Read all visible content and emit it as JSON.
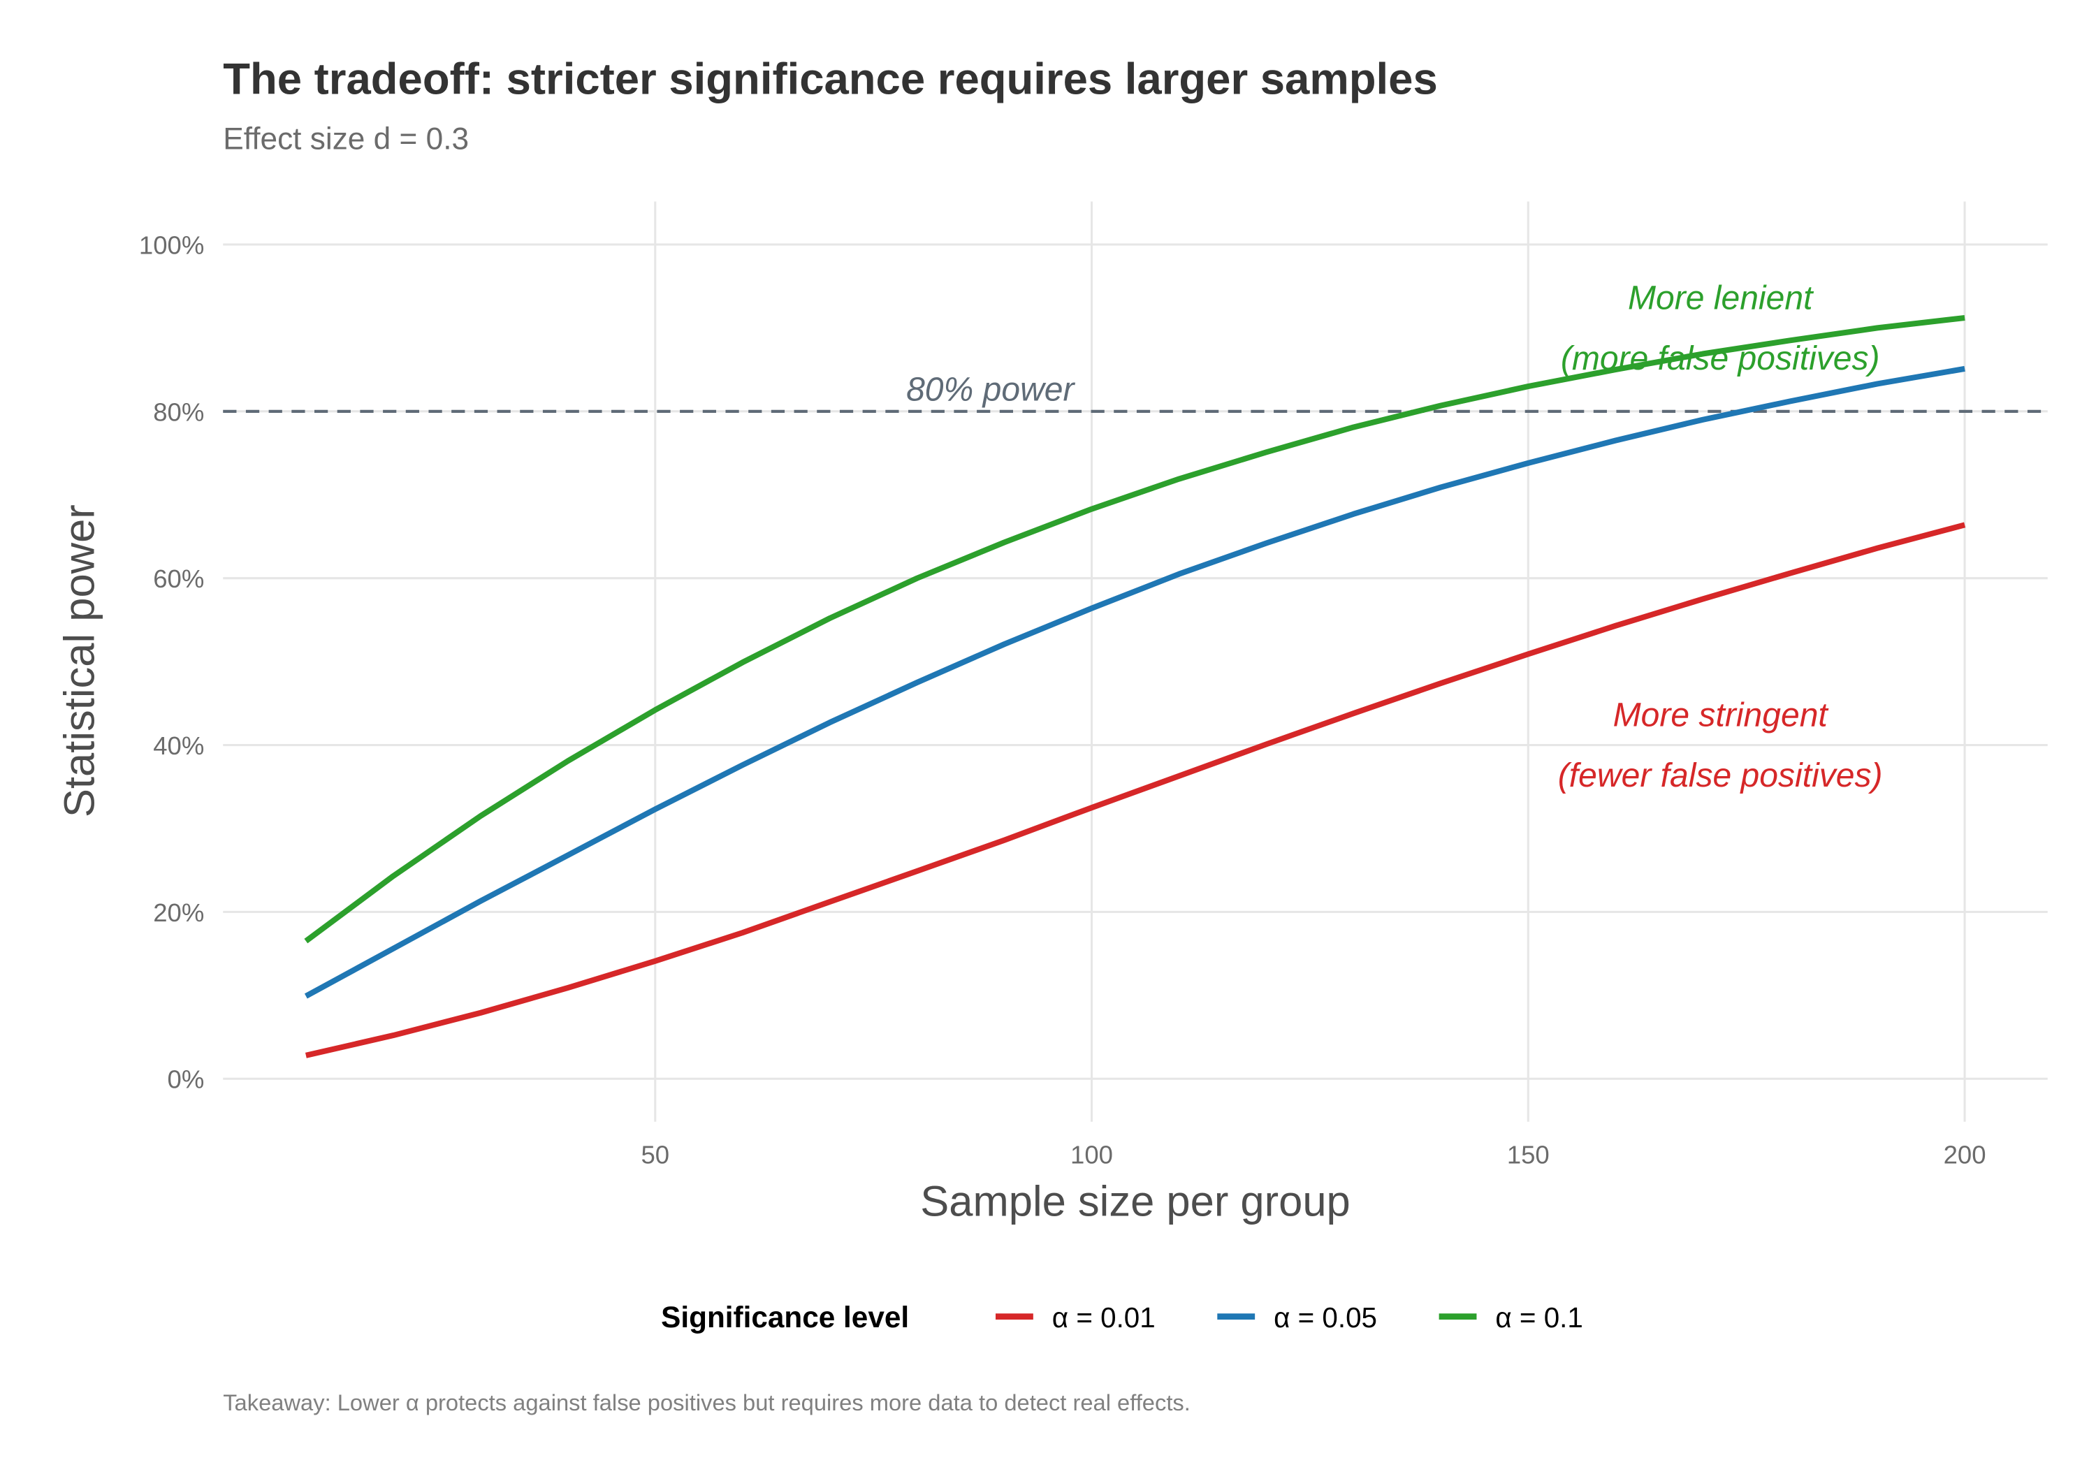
{
  "chart_data": {
    "type": "line",
    "title": "The tradeoff: stricter significance requires larger samples",
    "subtitle": "Effect size d = 0.3",
    "xlabel": "Sample size per group",
    "ylabel": "Statistical power",
    "xlim": [
      10,
      200
    ],
    "ylim": [
      0,
      1
    ],
    "x_ticks": [
      50,
      100,
      150,
      200
    ],
    "x_tick_labels": [
      "50",
      "100",
      "150",
      "200"
    ],
    "y_ticks": [
      0,
      0.2,
      0.4,
      0.6,
      0.8,
      1.0
    ],
    "y_tick_labels": [
      "0%",
      "20%",
      "40%",
      "60%",
      "80%",
      "100%"
    ],
    "grid": true,
    "x": [
      10,
      20,
      30,
      40,
      50,
      60,
      70,
      80,
      90,
      100,
      110,
      120,
      130,
      140,
      150,
      160,
      170,
      180,
      190,
      200
    ],
    "series": [
      {
        "name": "α = 0.01",
        "color": "#d62728",
        "values": [
          0.028,
          0.052,
          0.079,
          0.109,
          0.141,
          0.175,
          0.212,
          0.249,
          0.286,
          0.325,
          0.363,
          0.401,
          0.438,
          0.474,
          0.509,
          0.543,
          0.575,
          0.606,
          0.636,
          0.664
        ]
      },
      {
        "name": "α = 0.05",
        "color": "#1f77b4",
        "values": [
          0.099,
          0.156,
          0.213,
          0.268,
          0.323,
          0.376,
          0.427,
          0.475,
          0.521,
          0.564,
          0.605,
          0.642,
          0.677,
          0.709,
          0.738,
          0.765,
          0.79,
          0.812,
          0.833,
          0.851
        ]
      },
      {
        "name": "α = 0.1",
        "color": "#2ca02c",
        "values": [
          0.165,
          0.243,
          0.315,
          0.381,
          0.442,
          0.499,
          0.552,
          0.6,
          0.643,
          0.683,
          0.719,
          0.751,
          0.781,
          0.807,
          0.83,
          0.85,
          0.869,
          0.885,
          0.9,
          0.912
        ]
      }
    ],
    "reference_line": {
      "y": 0.8,
      "label": "80% power",
      "style": "dashed",
      "color": "#5f6b77"
    },
    "annotations": [
      {
        "line1": "More lenient",
        "line2": "(more false positives)",
        "color": "#2ca02c",
        "x": 172,
        "y": 0.95
      },
      {
        "line1": "More stringent",
        "line2": "(fewer false positives)",
        "color": "#d62728",
        "x": 172,
        "y": 0.45
      }
    ],
    "legend": {
      "title": "Significance level",
      "position": "bottom"
    },
    "caption": "Takeaway: Lower α protects against false positives but requires more data to detect real effects."
  }
}
